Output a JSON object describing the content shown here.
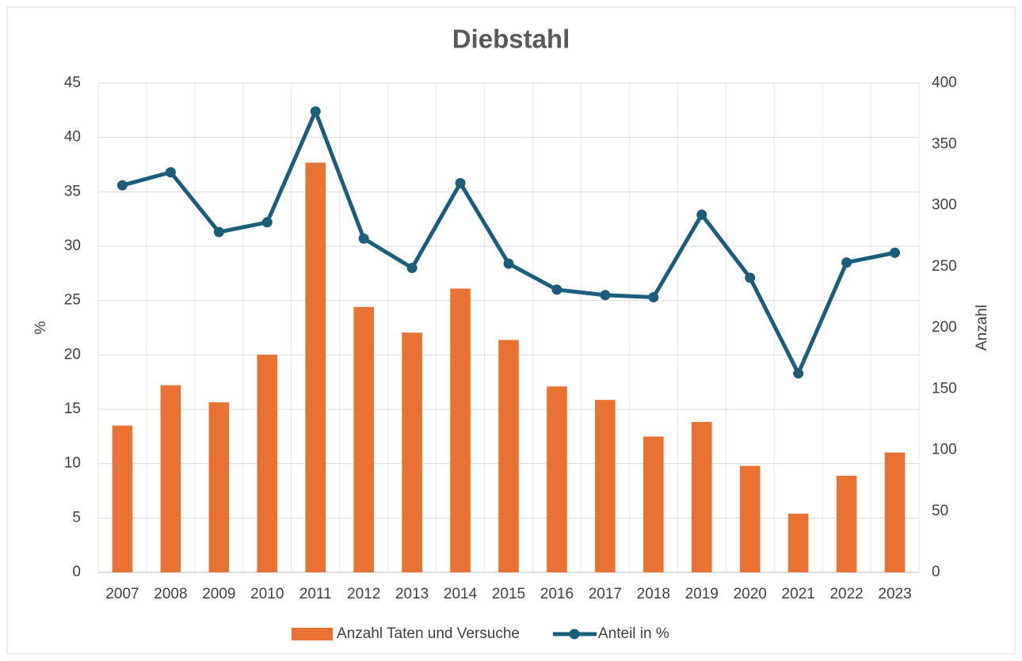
{
  "chart_data": {
    "type": "bar_line",
    "title": "Diebstahl",
    "y_label": "%",
    "y2_label": "Anzahl",
    "categories": [
      "2007",
      "2008",
      "2009",
      "2010",
      "2011",
      "2012",
      "2013",
      "2014",
      "2015",
      "2016",
      "2017",
      "2018",
      "2019",
      "2020",
      "2021",
      "2022",
      "2023"
    ],
    "series": [
      {
        "name": "Anzahl Taten und Versuche",
        "type": "bar",
        "axis": "y2",
        "color": "#e97132",
        "values": [
          120,
          153,
          139,
          178,
          335,
          217,
          196,
          232,
          190,
          152,
          141,
          111,
          123,
          87,
          48,
          79,
          98
        ]
      },
      {
        "name": "Anteil in %",
        "type": "line",
        "axis": "y",
        "color": "#1b5e7b",
        "values": [
          35.6,
          36.8,
          31.3,
          32.2,
          42.4,
          30.7,
          28.0,
          35.8,
          28.4,
          26.0,
          25.5,
          25.3,
          32.9,
          27.1,
          18.3,
          28.5,
          29.4
        ]
      }
    ],
    "ylim": [
      0,
      45
    ],
    "yticks": [
      0,
      5,
      10,
      15,
      20,
      25,
      30,
      35,
      40,
      45
    ],
    "y2lim": [
      0,
      400
    ],
    "y2ticks": [
      0,
      50,
      100,
      150,
      200,
      250,
      300,
      350,
      400
    ],
    "grid": true,
    "legend": "bottom"
  }
}
